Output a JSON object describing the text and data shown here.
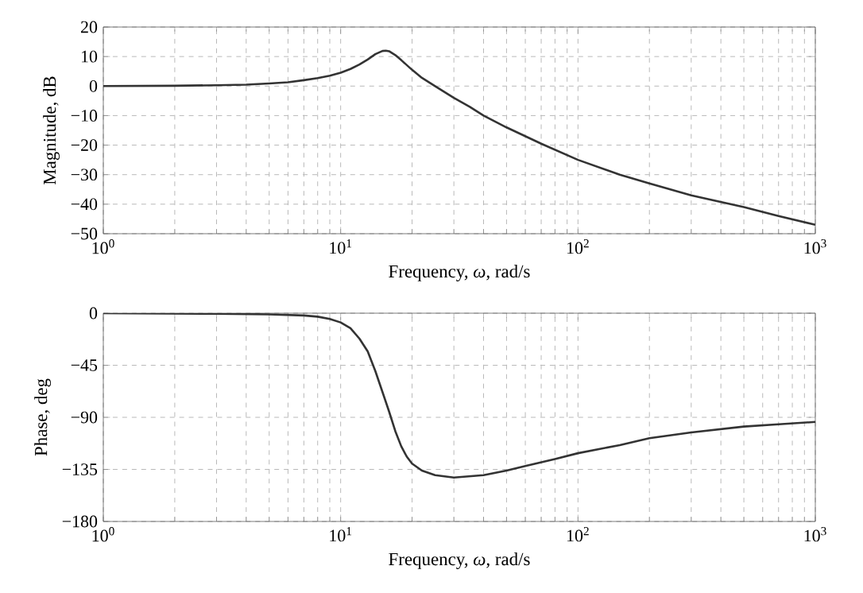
{
  "chart_data": [
    {
      "type": "line",
      "ylabel": "Magnitude, dB",
      "xlabel": "Frequency, *ω*, rad/s",
      "log": "x",
      "grid": true,
      "marker": "none",
      "line_style": "solid",
      "xlim": [
        1,
        1000
      ],
      "xticks": [
        {
          "value": 1,
          "label": "10$^{0}$"
        },
        {
          "value": 10,
          "label": "10$^{1}$"
        },
        {
          "value": 100,
          "label": "10$^{2}$"
        },
        {
          "value": 1000,
          "label": "10$^{3}$"
        }
      ],
      "ylim": [
        -50,
        20
      ],
      "yticks": [
        {
          "value": -50,
          "label": "−50"
        },
        {
          "value": -40,
          "label": "−40"
        },
        {
          "value": -30,
          "label": "−30"
        },
        {
          "value": -20,
          "label": "−20"
        },
        {
          "value": -10,
          "label": "−10"
        },
        0,
        10,
        20
      ],
      "series": [
        {
          "color": "#333333",
          "x": [
            1,
            2,
            3,
            4,
            5,
            6,
            7,
            8,
            9,
            10,
            11,
            12,
            13,
            14,
            15,
            15.5,
            16,
            17,
            18,
            20,
            22,
            25,
            30,
            35,
            40,
            50,
            70,
            100,
            150,
            200,
            300,
            500,
            700,
            1000
          ],
          "values": [
            0,
            0.1,
            0.3,
            0.5,
            0.9,
            1.3,
            2,
            2.7,
            3.5,
            4.5,
            5.8,
            7.3,
            9,
            10.8,
            11.9,
            12,
            11.8,
            10.5,
            8.8,
            5.5,
            2.8,
            0,
            -4,
            -7,
            -10,
            -14,
            -19.5,
            -25,
            -30,
            -33,
            -37,
            -41,
            -44,
            -47
          ]
        }
      ]
    },
    {
      "type": "line",
      "ylabel": "Phase, deg",
      "xlabel": "Frequency, *ω*, rad/s",
      "log": "x",
      "grid": true,
      "marker": "none",
      "line_style": "solid",
      "xlim": [
        1,
        1000
      ],
      "xticks": [
        {
          "value": 1,
          "label": "10$^{0}$"
        },
        {
          "value": 10,
          "label": "10$^{1}$"
        },
        {
          "value": 100,
          "label": "10$^{2}$"
        },
        {
          "value": 1000,
          "label": "10$^{3}$"
        }
      ],
      "ylim": [
        -180,
        0
      ],
      "yticks": [
        {
          "value": -180,
          "label": "−180"
        },
        {
          "value": -135,
          "label": "−135"
        },
        {
          "value": -90,
          "label": "−90"
        },
        {
          "value": -45,
          "label": "−45"
        },
        0
      ],
      "series": [
        {
          "color": "#333333",
          "x": [
            1,
            3,
            5,
            7,
            8,
            9,
            10,
            11,
            12,
            13,
            14,
            15,
            16,
            17,
            18,
            19,
            20,
            22,
            25,
            30,
            40,
            50,
            60,
            80,
            100,
            150,
            200,
            300,
            500,
            700,
            1000
          ],
          "values": [
            0,
            -0.5,
            -1,
            -2,
            -3,
            -5,
            -8,
            -13,
            -22,
            -33,
            -50,
            -68,
            -85,
            -102,
            -115,
            -124,
            -130,
            -136,
            -140,
            -142,
            -140,
            -136,
            -132,
            -126,
            -121,
            -114,
            -108,
            -103,
            -98,
            -96,
            -94
          ]
        }
      ]
    }
  ]
}
